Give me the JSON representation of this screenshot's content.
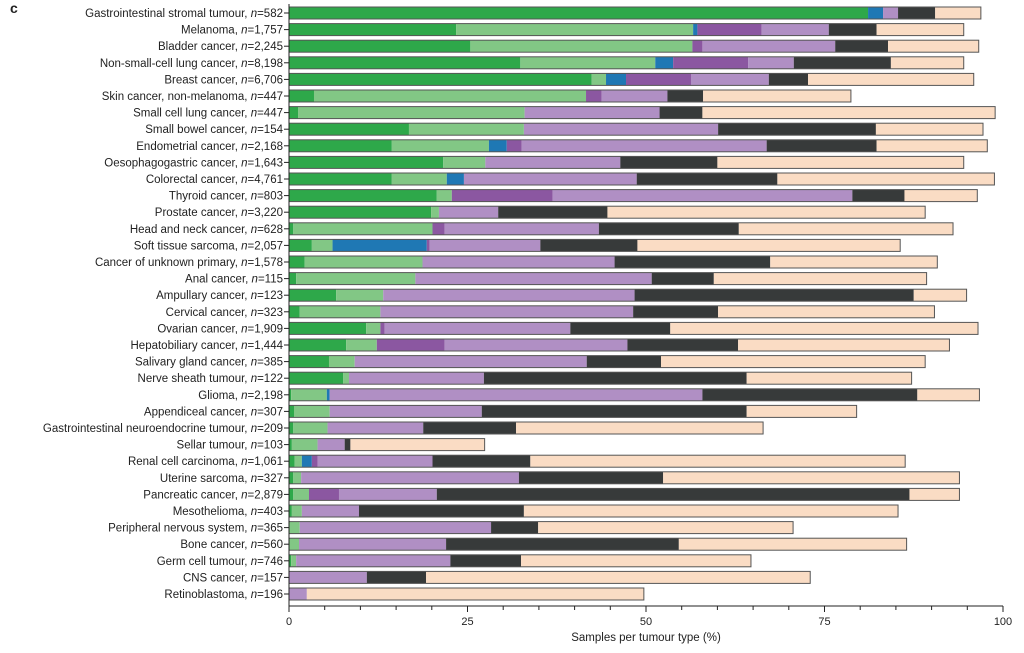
{
  "panel_label": "c",
  "chart_data": {
    "type": "bar",
    "orientation": "horizontal",
    "stacked": true,
    "xlabel": "Samples per tumour type (%)",
    "xlim": [
      0,
      100
    ],
    "xticks": [
      "0",
      "25",
      "50",
      "75",
      "100"
    ],
    "grid": false,
    "segment_colors": [
      "#2ea84a",
      "#82c785",
      "#1f78b4",
      "#8b57a1",
      "#b08fc4",
      "#373a3a",
      "#fadcc4"
    ],
    "categories": [
      {
        "name": "Gastrointestinal stromal tumour",
        "n": "582"
      },
      {
        "name": "Melanoma",
        "n": "1,757"
      },
      {
        "name": "Bladder cancer",
        "n": "2,245"
      },
      {
        "name": "Non-small-cell lung cancer",
        "n": "8,198"
      },
      {
        "name": "Breast cancer",
        "n": "6,706"
      },
      {
        "name": "Skin cancer, non-melanoma",
        "n": "447"
      },
      {
        "name": "Small cell lung cancer",
        "n": "447"
      },
      {
        "name": "Small bowel cancer",
        "n": "154"
      },
      {
        "name": "Endometrial cancer",
        "n": "2,168"
      },
      {
        "name": "Oesophagogastric cancer",
        "n": "1,643"
      },
      {
        "name": "Colorectal cancer",
        "n": "4,761"
      },
      {
        "name": "Thyroid cancer",
        "n": "803"
      },
      {
        "name": "Prostate cancer",
        "n": "3,220"
      },
      {
        "name": "Head and neck cancer",
        "n": "628"
      },
      {
        "name": "Soft tissue sarcoma",
        "n": "2,057"
      },
      {
        "name": "Cancer of unknown primary",
        "n": "1,578"
      },
      {
        "name": "Anal cancer",
        "n": "115"
      },
      {
        "name": "Ampullary cancer",
        "n": "123"
      },
      {
        "name": "Cervical cancer",
        "n": "323"
      },
      {
        "name": "Ovarian cancer",
        "n": "1,909"
      },
      {
        "name": "Hepatobiliary cancer",
        "n": "1,444"
      },
      {
        "name": "Salivary gland cancer",
        "n": "385"
      },
      {
        "name": "Nerve sheath tumour",
        "n": "122"
      },
      {
        "name": "Glioma",
        "n": "2,198"
      },
      {
        "name": "Appendiceal cancer",
        "n": "307"
      },
      {
        "name": "Gastrointestinal neuroendocrine tumour",
        "n": "209"
      },
      {
        "name": "Sellar tumour",
        "n": "103"
      },
      {
        "name": "Renal cell carcinoma",
        "n": "1,061"
      },
      {
        "name": "Uterine sarcoma",
        "n": "327"
      },
      {
        "name": "Pancreatic cancer",
        "n": "2,879"
      },
      {
        "name": "Mesothelioma",
        "n": "403"
      },
      {
        "name": "Peripheral nervous system",
        "n": "365"
      },
      {
        "name": "Bone cancer",
        "n": "560"
      },
      {
        "name": "Germ cell tumour",
        "n": "746"
      },
      {
        "name": "CNS cancer",
        "n": "157"
      },
      {
        "name": "Retinoblastoma",
        "n": "196"
      }
    ],
    "values": [
      [
        81.1,
        0,
        2.1,
        0,
        2.1,
        5.2,
        6.4
      ],
      [
        23.4,
        33.2,
        0.6,
        9.0,
        9.4,
        6.7,
        12.2
      ],
      [
        25.4,
        31.1,
        0,
        1.4,
        18.6,
        7.4,
        12.7
      ],
      [
        32.4,
        18.9,
        2.5,
        10.5,
        6.4,
        13.6,
        10.2
      ],
      [
        42.4,
        2.0,
        2.8,
        9.1,
        10.9,
        5.5,
        23.2
      ],
      [
        3.5,
        38.1,
        0,
        2.2,
        9.2,
        5.0,
        20.7
      ],
      [
        1.3,
        31.7,
        0,
        0,
        18.9,
        6.0,
        41.0
      ],
      [
        16.8,
        16.1,
        0,
        0,
        27.2,
        22.1,
        15.0
      ],
      [
        14.4,
        13.6,
        2.5,
        2.1,
        34.3,
        15.4,
        15.5
      ],
      [
        21.6,
        5.9,
        0,
        0,
        18.9,
        13.6,
        34.5
      ],
      [
        14.4,
        7.7,
        2.4,
        0,
        24.2,
        19.7,
        30.4
      ],
      [
        20.7,
        2.1,
        0,
        14.1,
        42.0,
        7.3,
        10.2
      ],
      [
        19.9,
        1.1,
        0,
        0,
        8.3,
        15.3,
        44.5
      ],
      [
        0.6,
        19.5,
        0,
        1.7,
        21.6,
        19.6,
        30.0
      ],
      [
        3.2,
        2.9,
        13.2,
        0.4,
        15.5,
        13.6,
        36.8
      ],
      [
        2.2,
        16.5,
        0,
        0,
        26.9,
        21.8,
        23.4
      ],
      [
        1.0,
        16.7,
        0,
        0,
        33.1,
        8.7,
        29.8
      ],
      [
        6.6,
        6.6,
        0,
        0,
        35.2,
        39.1,
        7.4
      ],
      [
        1.5,
        11.3,
        0,
        0,
        35.4,
        11.9,
        30.3
      ],
      [
        10.8,
        2.0,
        0,
        0.6,
        26.0,
        14.0,
        43.1
      ],
      [
        8.0,
        4.3,
        0,
        9.5,
        25.6,
        15.5,
        29.6
      ],
      [
        5.6,
        3.6,
        0,
        0,
        32.5,
        10.4,
        37.0
      ],
      [
        7.6,
        0.8,
        0,
        0,
        18.9,
        36.8,
        23.1
      ],
      [
        0.3,
        5.0,
        0.4,
        0,
        52.2,
        30.1,
        8.7
      ],
      [
        0.7,
        5.0,
        0,
        0,
        21.3,
        37.1,
        15.4
      ],
      [
        0.6,
        4.8,
        0,
        0,
        13.4,
        13.0,
        34.6
      ],
      [
        0.4,
        3.6,
        0,
        0,
        3.8,
        0.8,
        18.8
      ],
      [
        0.8,
        1.0,
        1.4,
        0.8,
        16.1,
        13.7,
        52.5
      ],
      [
        0.6,
        1.1,
        0,
        0,
        30.5,
        20.2,
        41.5
      ],
      [
        0.6,
        2.2,
        0,
        4.2,
        13.7,
        66.2,
        7.0
      ],
      [
        0.4,
        1.4,
        0,
        0,
        8.0,
        23.1,
        52.4
      ],
      [
        0,
        1.5,
        0,
        0,
        26.8,
        6.6,
        35.7
      ],
      [
        0,
        1.4,
        0,
        0,
        20.6,
        32.6,
        31.9
      ],
      [
        0.3,
        0.7,
        0,
        0,
        21.6,
        9.9,
        32.2
      ],
      [
        0,
        0,
        0,
        0,
        10.9,
        8.3,
        53.8
      ],
      [
        0,
        0,
        0,
        0,
        2.5,
        0,
        47.2
      ]
    ]
  }
}
